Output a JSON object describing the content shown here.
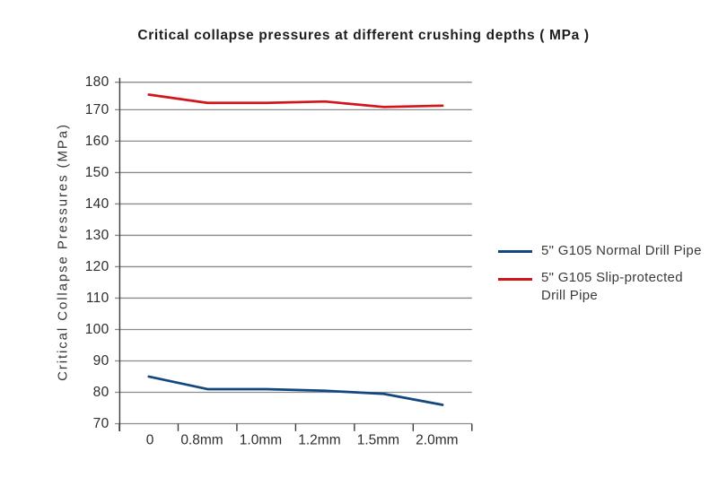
{
  "chart_data": {
    "type": "line",
    "title": "Critical collapse pressures at different crushing depths ( MPa )",
    "ylabel": "Critical Collapse Pressures (MPa)",
    "xlabel": "",
    "categories": [
      "0",
      "0.8mm",
      "1.0mm",
      "1.2mm",
      "1.5mm",
      "2.0mm"
    ],
    "series": [
      {
        "name": "5\" G105 Normal Drill Pipe",
        "color": "#134780",
        "values": [
          85,
          81,
          81,
          80.5,
          79.5,
          76
        ]
      },
      {
        "name": "5\" G105 Slip-protected Drill Pipe",
        "color": "#d2151a",
        "values": [
          175.5,
          172.5,
          172.5,
          173,
          171,
          171.5
        ]
      }
    ],
    "ylim": [
      70,
      180
    ],
    "ytick_step": 10,
    "grid": "horizontal",
    "legend_position": "right",
    "colors": {
      "gridline": "#8a8a8a",
      "axis": "#3c3c3c",
      "tick_label": "#2e2e2e",
      "background": "#ffffff"
    }
  }
}
